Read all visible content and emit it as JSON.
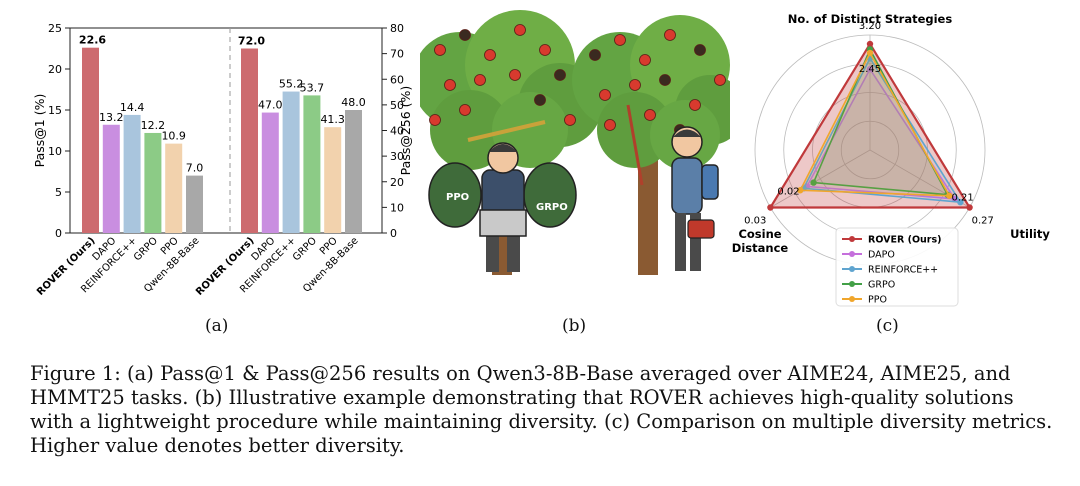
{
  "figure": {
    "sublabels": [
      "(a)",
      "(b)",
      "(c)"
    ],
    "caption": "Figure 1: (a) Pass@1 & Pass@256 results on Qwen3-8B-Base averaged over AIME24, AIME25, and HMMT25 tasks. (b) Illustrative example demonstrating that ROVER achieves high-quality solutions with a lightweight procedure while maintaining diversity. (c) Comparison on multiple diversity metrics. Higher value denotes better diversity."
  },
  "illustration": {
    "left_bag_label": "PPO",
    "right_bag_label": "GRPO"
  },
  "chart_data": [
    {
      "type": "bar",
      "title": "",
      "ylabel": "Pass@1 (%)",
      "ylim": [
        0,
        25
      ],
      "yticks": [
        0,
        5,
        10,
        15,
        20,
        25
      ],
      "categories": [
        "ROVER (Ours)",
        "DAPO",
        "REINFORCE++",
        "GRPO",
        "PPO",
        "Qwen-8B-Base"
      ],
      "values": [
        22.6,
        13.2,
        14.4,
        12.2,
        10.9,
        7.0
      ],
      "colors": [
        "#cd6b6f",
        "#c98ee0",
        "#a9c5dd",
        "#8ccb86",
        "#f2d2ad",
        "#a8a8a8"
      ],
      "bold_first": true
    },
    {
      "type": "bar",
      "title": "",
      "ylabel": "Pass@256 (%)",
      "ylim": [
        0,
        80
      ],
      "yticks": [
        0,
        10,
        20,
        30,
        40,
        50,
        60,
        70,
        80
      ],
      "categories": [
        "ROVER (Ours)",
        "DAPO",
        "REINFORCE++",
        "GRPO",
        "PPO",
        "Qwen-8B-Base"
      ],
      "values": [
        72.0,
        47.0,
        55.2,
        53.7,
        41.3,
        48.0
      ],
      "colors": [
        "#cd6b6f",
        "#c98ee0",
        "#a9c5dd",
        "#8ccb86",
        "#f2d2ad",
        "#a8a8a8"
      ],
      "bold_first": true
    },
    {
      "type": "radar",
      "axes": [
        {
          "name": "No. of Distinct Strategies",
          "max": 3.2,
          "inner_label": "2.45",
          "inner_value": 2.45,
          "max_label": "3.20"
        },
        {
          "name": "Utility",
          "max": 0.27,
          "inner_label": "0.21",
          "inner_value": 0.21,
          "max_label": "0.27"
        },
        {
          "name": "Cosine Distance",
          "max": 0.03,
          "inner_label": "0.02",
          "inner_value": 0.02,
          "max_label": "0.03"
        }
      ],
      "series": [
        {
          "name": "ROVER (Ours)",
          "color": "#c0393b",
          "values": [
            2.95,
            0.27,
            0.03
          ]
        },
        {
          "name": "DAPO",
          "color": "#c56fdc",
          "values": [
            2.25,
            0.23,
            0.019
          ]
        },
        {
          "name": "REINFORCE++",
          "color": "#5fa4cf",
          "values": [
            2.55,
            0.245,
            0.02
          ]
        },
        {
          "name": "GRPO",
          "color": "#43a047",
          "values": [
            2.8,
            0.21,
            0.017
          ]
        },
        {
          "name": "PPO",
          "color": "#f0a62c",
          "values": [
            2.7,
            0.215,
            0.021
          ]
        }
      ]
    }
  ]
}
